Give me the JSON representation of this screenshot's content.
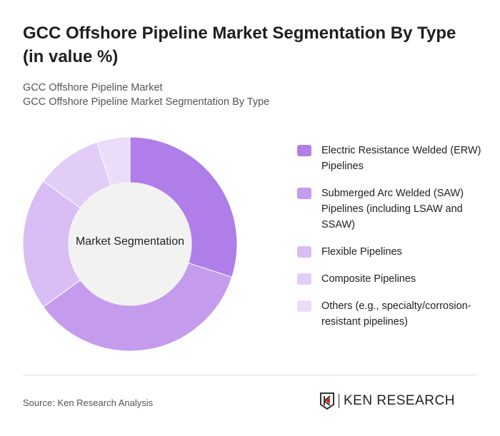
{
  "title": "GCC Offshore Pipeline Market Segmentation By Type (in value %)",
  "subtitle1": "GCC Offshore Pipeline Market",
  "subtitle2": "GCC Offshore Pipeline Market Segmentation By Type",
  "source": "Source: Ken Research Analysis",
  "logo_text": "KEN RESEARCH",
  "chart_data": {
    "type": "pie",
    "donut": true,
    "center_label": "Market Segmentation",
    "legend_position": "right",
    "categories": [
      "Electric Resistance Welded (ERW) Pipelines",
      "Submerged Arc Welded (SAW) Pipelines (including LSAW and SSAW)",
      "Flexible Pipelines",
      "Composite Pipelines",
      "Others (e.g., specialty/corrosion-resistant pipelines)"
    ],
    "values": [
      30,
      35,
      20,
      10,
      5
    ],
    "colors": [
      "#b07ee8",
      "#c49bed",
      "#d9bdf5",
      "#e2cdf7",
      "#ebdcfa"
    ]
  }
}
